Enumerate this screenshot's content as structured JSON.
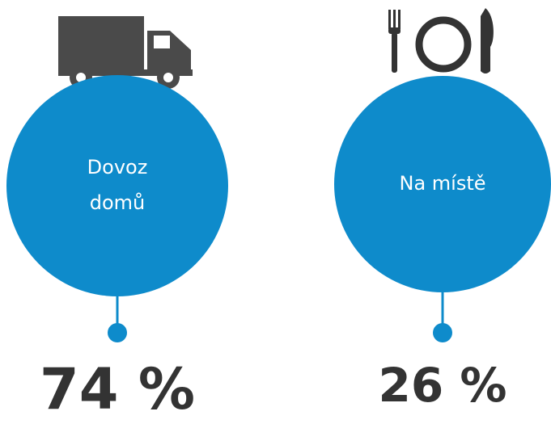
{
  "items": [
    {
      "label_lines": [
        "Dovoz",
        "domů"
      ],
      "value": "74 %"
    },
    {
      "label_lines": [
        "Na místě"
      ],
      "value": "26 %"
    }
  ]
}
